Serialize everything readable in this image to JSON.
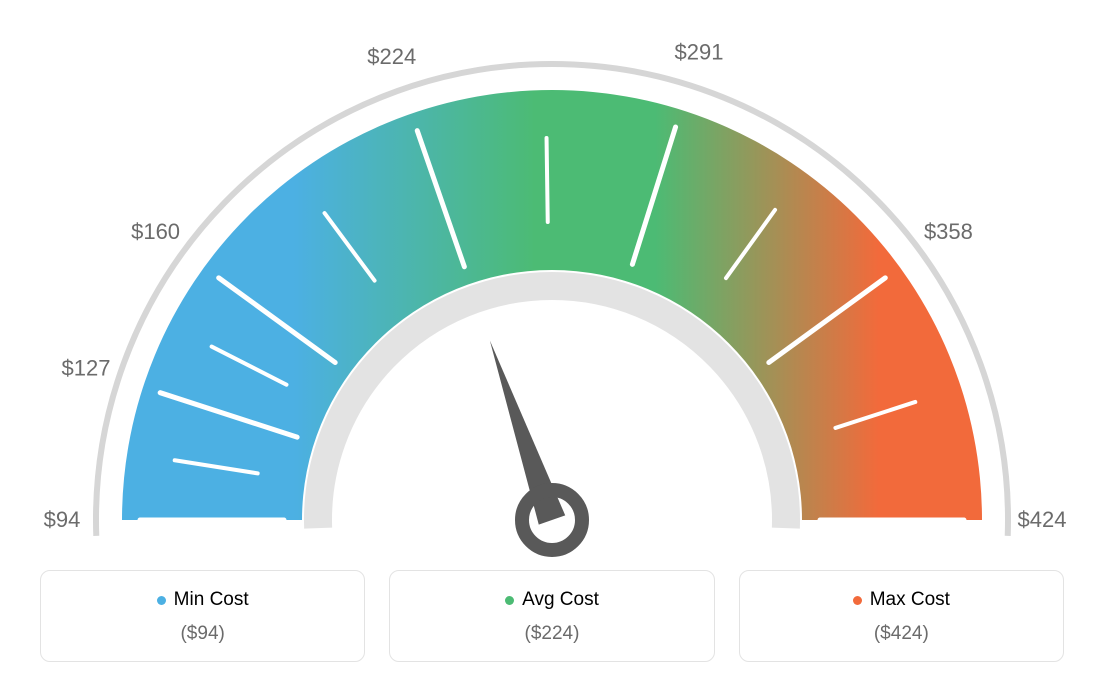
{
  "gauge": {
    "type": "gauge",
    "min_value": 94,
    "avg_value": 224,
    "max_value": 424,
    "tick_values": [
      94,
      127,
      160,
      224,
      291,
      358,
      424
    ],
    "tick_labels": [
      "$94",
      "$127",
      "$160",
      "$224",
      "$291",
      "$358",
      "$424"
    ],
    "needle_value": 224,
    "colors": {
      "low": "#4cb0e3",
      "mid": "#4cbb74",
      "high": "#f26a3b",
      "outer_ring": "#d6d6d6",
      "inner_ring": "#e3e3e3",
      "tick_mark": "#ffffff",
      "tick_text": "#6b6b6b",
      "needle": "#595959",
      "background": "#ffffff"
    },
    "outer_radius": 430,
    "inner_radius": 250,
    "ring_thickness": 6,
    "label_fontsize": 22
  },
  "legend": {
    "min": {
      "label": "Min Cost",
      "value": "($94)",
      "color": "#4cb0e3"
    },
    "avg": {
      "label": "Avg Cost",
      "value": "($224)",
      "color": "#4cbb74"
    },
    "max": {
      "label": "Max Cost",
      "value": "($424)",
      "color": "#f26a3b"
    }
  }
}
